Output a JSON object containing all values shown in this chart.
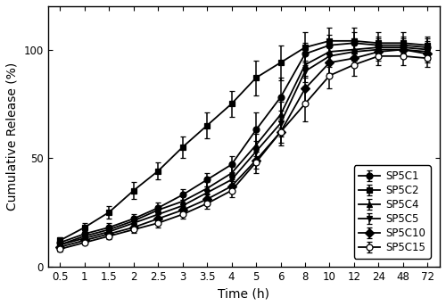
{
  "time_points": [
    0.5,
    1,
    1.5,
    2,
    2.5,
    3,
    3.5,
    4,
    5,
    6,
    8,
    10,
    12,
    24,
    48,
    72
  ],
  "series": {
    "SP5C1": {
      "y": [
        11,
        15,
        18,
        22,
        27,
        33,
        40,
        47,
        63,
        78,
        98,
        102,
        103,
        102,
        102,
        101
      ],
      "yerr": [
        1.5,
        1.5,
        2,
        2,
        2.5,
        2.5,
        3,
        4,
        8,
        9,
        5,
        5,
        5,
        4,
        4,
        4
      ],
      "marker": "o",
      "label": "SP5C1",
      "filled": true
    },
    "SP5C2": {
      "y": [
        12,
        18,
        25,
        35,
        44,
        55,
        65,
        75,
        87,
        94,
        101,
        104,
        104,
        103,
        103,
        102
      ],
      "yerr": [
        1.5,
        2,
        3,
        4,
        4,
        5,
        6,
        6,
        8,
        8,
        7,
        6,
        6,
        5,
        5,
        4
      ],
      "marker": "s",
      "label": "SP5C2",
      "filled": true
    },
    "SP5C4": {
      "y": [
        10,
        14,
        17,
        21,
        26,
        30,
        36,
        43,
        56,
        70,
        93,
        99,
        100,
        101,
        101,
        100
      ],
      "yerr": [
        1,
        1.5,
        1.5,
        2,
        2,
        2.5,
        3,
        3.5,
        5,
        6,
        6,
        5,
        5,
        4,
        4,
        4
      ],
      "marker": "^",
      "label": "SP5C4",
      "filled": true
    },
    "SP5C5": {
      "y": [
        10,
        13,
        16,
        20,
        24,
        28,
        34,
        40,
        53,
        66,
        90,
        97,
        99,
        100,
        100,
        99
      ],
      "yerr": [
        1,
        1.5,
        1.5,
        2,
        2,
        2.5,
        3,
        3.5,
        5,
        6,
        5,
        5,
        4,
        4,
        4,
        4
      ],
      "marker": "v",
      "label": "SP5C5",
      "filled": true
    },
    "SP5C10": {
      "y": [
        9,
        12,
        15,
        18,
        22,
        26,
        31,
        37,
        49,
        62,
        82,
        94,
        96,
        99,
        100,
        98
      ],
      "yerr": [
        1,
        1,
        1.5,
        1.5,
        2,
        2,
        2.5,
        3,
        4,
        5,
        6,
        5,
        4,
        4,
        4,
        4
      ],
      "marker": "D",
      "label": "SP5C10",
      "filled": true
    },
    "SP5C15": {
      "y": [
        8,
        11,
        14,
        17,
        20,
        24,
        29,
        35,
        48,
        62,
        75,
        88,
        93,
        97,
        97,
        96
      ],
      "yerr": [
        1,
        1,
        1.5,
        1.5,
        2,
        2,
        2.5,
        3,
        5,
        6,
        8,
        6,
        5,
        4,
        4,
        4
      ],
      "marker": "o",
      "label": "SP5C15",
      "filled": false
    }
  },
  "series_order": [
    "SP5C1",
    "SP5C2",
    "SP5C4",
    "SP5C5",
    "SP5C10",
    "SP5C15"
  ],
  "xlabel": "Time (h)",
  "ylabel": "Cumulative Release (%)",
  "ylim": [
    0,
    120
  ],
  "yticks": [
    0,
    50,
    100
  ],
  "color": "black",
  "linewidth": 1.3,
  "markersize": 5,
  "capsize": 2.5,
  "elinewidth": 1.1,
  "legend_fontsize": 8.5,
  "axis_fontsize": 10,
  "tick_fontsize": 8.5
}
